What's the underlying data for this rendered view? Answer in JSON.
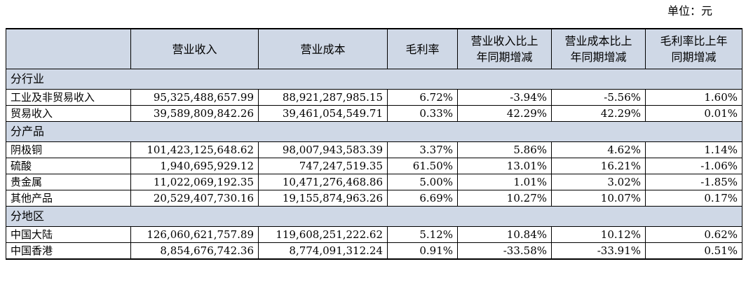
{
  "unit_label": "单位：元",
  "headers": [
    "",
    "营业收入",
    "营业成本",
    "毛利率",
    "营业收入比上年同期增减",
    "营业成本比上年同期增减",
    "毛利率比上年同期增减"
  ],
  "header_lines": {
    "h4": [
      "营业收入比上",
      "年同期增减"
    ],
    "h5": [
      "营业成本比上",
      "年同期增减"
    ],
    "h6": [
      "毛利率比上年",
      "同期增减"
    ]
  },
  "sections": [
    {
      "title": "分行业",
      "rows": [
        {
          "name": "工业及非贸易收入",
          "revenue": "95,325,488,657.99",
          "cost": "88,921,287,985.15",
          "margin": "6.72%",
          "rev_change": "-3.94%",
          "cost_change": "-5.56%",
          "margin_change": "1.60%"
        },
        {
          "name": "贸易收入",
          "revenue": "39,589,809,842.26",
          "cost": "39,461,054,549.71",
          "margin": "0.33%",
          "rev_change": "42.29%",
          "cost_change": "42.29%",
          "margin_change": "0.01%"
        }
      ]
    },
    {
      "title": "分产品",
      "rows": [
        {
          "name": "阴极铜",
          "revenue": "101,423,125,648.62",
          "cost": "98,007,943,583.39",
          "margin": "3.37%",
          "rev_change": "5.86%",
          "cost_change": "4.62%",
          "margin_change": "1.14%"
        },
        {
          "name": "硫酸",
          "revenue": "1,940,695,929.12",
          "cost": "747,247,519.35",
          "margin": "61.50%",
          "rev_change": "13.01%",
          "cost_change": "16.21%",
          "margin_change": "-1.06%"
        },
        {
          "name": "贵金属",
          "revenue": "11,022,069,192.35",
          "cost": "10,471,276,468.86",
          "margin": "5.00%",
          "rev_change": "1.01%",
          "cost_change": "3.02%",
          "margin_change": "-1.85%"
        },
        {
          "name": "其他产品",
          "revenue": "20,529,407,730.16",
          "cost": "19,155,874,963.26",
          "margin": "6.69%",
          "rev_change": "10.27%",
          "cost_change": "10.07%",
          "margin_change": "0.17%"
        }
      ]
    },
    {
      "title": "分地区",
      "rows": [
        {
          "name": "中国大陆",
          "revenue": "126,060,621,757.89",
          "cost": "119,608,251,222.62",
          "margin": "5.12%",
          "rev_change": "10.84%",
          "cost_change": "10.12%",
          "margin_change": "0.62%"
        },
        {
          "name": "中国香港",
          "revenue": "8,854,676,742.36",
          "cost": "8,774,091,312.24",
          "margin": "0.91%",
          "rev_change": "-33.58%",
          "cost_change": "-33.91%",
          "margin_change": "0.51%"
        }
      ]
    }
  ],
  "colors": {
    "header_bg": "#cfd8e6",
    "border": "#000000"
  }
}
